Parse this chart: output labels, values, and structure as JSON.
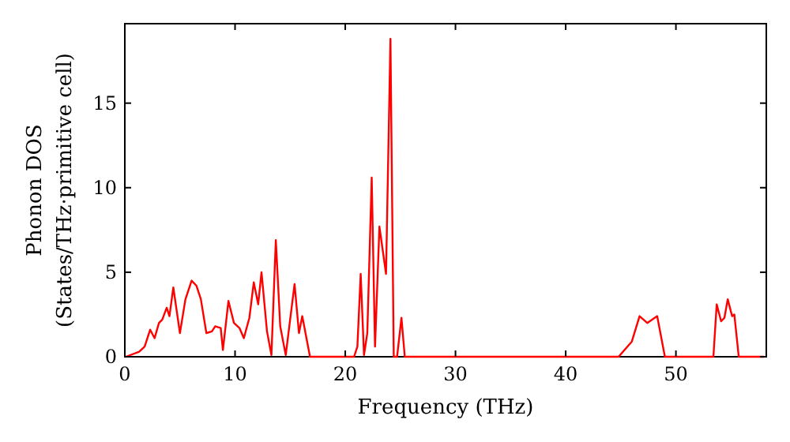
{
  "chart_data": {
    "type": "line",
    "xlabel": "Frequency (THz)",
    "ylabel": "Phonon DOS\n(States/THz·primitive cell)",
    "xlim": [
      0,
      58.2
    ],
    "ylim": [
      0,
      19.7
    ],
    "xticks": [
      0,
      10,
      20,
      30,
      40,
      50
    ],
    "yticks": [
      0,
      5,
      10,
      15
    ],
    "grid": false,
    "marker": "none",
    "line_style": "solid",
    "series": [
      {
        "color": "#ff0000",
        "x": [
          0,
          0.1,
          1.3,
          1.8,
          2.3,
          2.7,
          3.1,
          3.4,
          3.8,
          4.05,
          4.4,
          5.0,
          5.5,
          6.06,
          6.5,
          6.9,
          7.4,
          7.9,
          8.2,
          8.7,
          8.9,
          9.4,
          9.9,
          10.4,
          10.8,
          11.3,
          11.7,
          12.1,
          12.4,
          12.9,
          13.3,
          13.7,
          14.1,
          14.6,
          15.4,
          15.8,
          16.1,
          16.8,
          20.8,
          21.1,
          21.4,
          21.7,
          22.0,
          22.4,
          22.7,
          23.1,
          23.7,
          24.1,
          24.4,
          24.7,
          25.1,
          25.4,
          44.8,
          46.0,
          46.7,
          47.4,
          48.3,
          49.0,
          53.4,
          53.7,
          54.1,
          54.4,
          54.7,
          55.1,
          55.3,
          55.7,
          58
        ],
        "values": [
          0,
          0,
          0.3,
          0.6,
          1.6,
          1.1,
          2.0,
          2.2,
          2.9,
          2.4,
          4.1,
          1.4,
          3.4,
          4.5,
          4.2,
          3.4,
          1.4,
          1.5,
          1.8,
          1.7,
          0.4,
          3.3,
          2.0,
          1.7,
          1.1,
          2.3,
          4.4,
          3.1,
          5.0,
          1.5,
          0.1,
          6.9,
          1.8,
          0.1,
          4.3,
          1.4,
          2.4,
          0,
          0,
          0.6,
          4.9,
          0.1,
          1.4,
          10.6,
          0.6,
          7.7,
          4.9,
          18.8,
          0,
          0,
          2.3,
          0,
          0,
          0.9,
          2.4,
          2.0,
          2.4,
          0,
          0,
          3.1,
          2.1,
          2.3,
          3.4,
          2.4,
          2.5,
          0,
          0
        ]
      }
    ]
  }
}
